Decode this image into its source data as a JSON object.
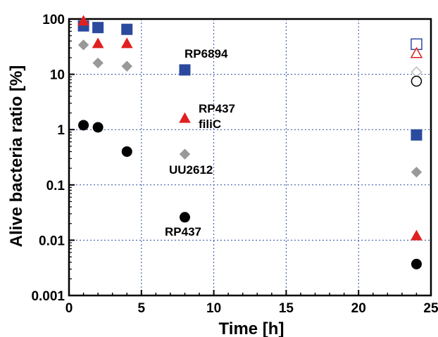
{
  "chart_data": {
    "type": "scatter",
    "title": "",
    "xlabel": "Time [h]",
    "ylabel": "Alive bacteria ratio [%]",
    "xlim": [
      0,
      25
    ],
    "ylim": [
      0.001,
      100
    ],
    "yscale": "log",
    "grid": true,
    "x_ticks": [
      "0",
      "5",
      "10",
      "15",
      "20",
      "25"
    ],
    "y_ticks": [
      "0.001",
      "0.01",
      "0.1",
      "1",
      "10",
      "100"
    ],
    "series": [
      {
        "marker": "square",
        "color": "#2b4a9e",
        "points": [
          {
            "x": 1,
            "y": 75
          },
          {
            "x": 2,
            "y": 70
          },
          {
            "x": 4,
            "y": 65
          },
          {
            "x": 8,
            "y": 12
          },
          {
            "x": 24,
            "y": 0.8
          }
        ]
      },
      {
        "marker": "triangle",
        "color": "#e02020",
        "points": [
          {
            "x": 1,
            "y": 92
          },
          {
            "x": 2,
            "y": 36
          },
          {
            "x": 4,
            "y": 36
          },
          {
            "x": 8,
            "y": 1.6
          },
          {
            "x": 24,
            "y": 0.012
          }
        ]
      },
      {
        "marker": "diamond",
        "color": "#999999",
        "points": [
          {
            "x": 1,
            "y": 34
          },
          {
            "x": 2,
            "y": 16
          },
          {
            "x": 4,
            "y": 14
          },
          {
            "x": 8,
            "y": 0.36
          },
          {
            "x": 24,
            "y": 0.17
          }
        ]
      },
      {
        "marker": "circle",
        "color": "#000000",
        "points": [
          {
            "x": 1,
            "y": 1.2
          },
          {
            "x": 2,
            "y": 1.1
          },
          {
            "x": 4,
            "y": 0.4
          },
          {
            "x": 8,
            "y": 0.026
          },
          {
            "x": 24,
            "y": 0.0037
          }
        ]
      },
      {
        "marker": "square-open",
        "color": "#2b4a9e",
        "points": [
          {
            "x": 24,
            "y": 35
          }
        ]
      },
      {
        "marker": "triangle-open",
        "color": "#e02020",
        "points": [
          {
            "x": 24,
            "y": 24
          }
        ]
      },
      {
        "marker": "diamond-open",
        "color": "#bbbbbb",
        "points": [
          {
            "x": 24,
            "y": 11
          }
        ]
      },
      {
        "marker": "circle-open",
        "color": "#000000",
        "points": [
          {
            "x": 24,
            "y": 7.5
          }
        ]
      }
    ],
    "annotations": [
      {
        "text": "RP6894",
        "x": 8,
        "y": 12
      },
      {
        "text": "RP437",
        "x": 8,
        "y": 1.6
      },
      {
        "text": "filiC",
        "x": 8,
        "y": 1.6
      },
      {
        "text": "UU2612",
        "x": 8,
        "y": 0.36
      },
      {
        "text": "RP437",
        "x": 8,
        "y": 0.026
      }
    ]
  }
}
